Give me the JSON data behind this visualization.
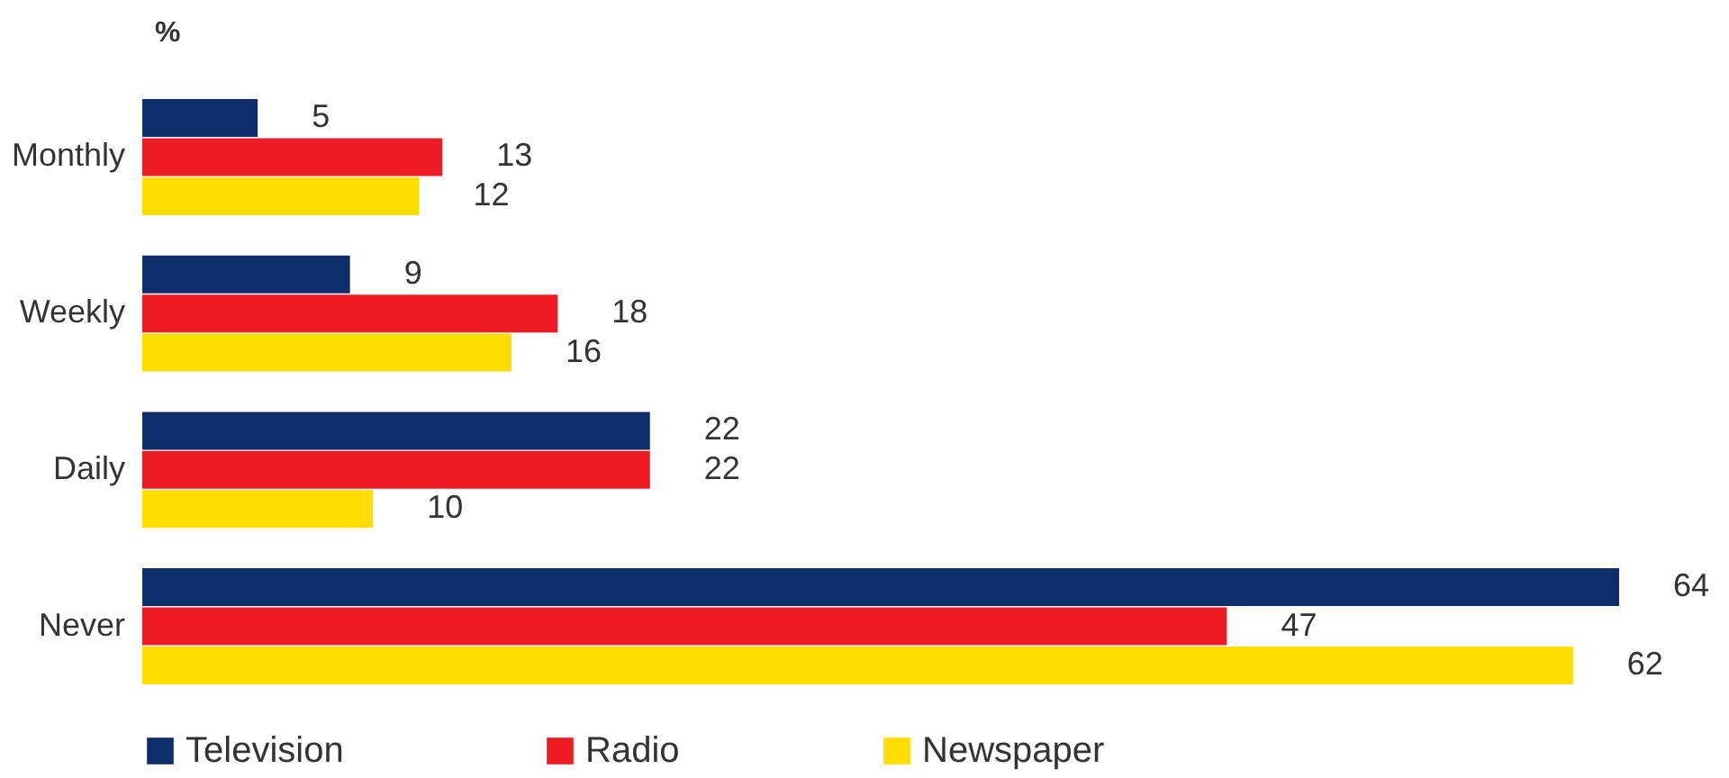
{
  "chart_data": {
    "type": "bar",
    "orientation": "horizontal",
    "title": "%",
    "categories": [
      "Monthly",
      "Weekly",
      "Daily",
      "Never"
    ],
    "series": [
      {
        "name": "Television",
        "color": "#0f2d6b",
        "values": [
          5,
          9,
          22,
          64
        ]
      },
      {
        "name": "Radio",
        "color": "#ed1c24",
        "values": [
          13,
          18,
          22,
          47
        ]
      },
      {
        "name": "Newspaper",
        "color": "#ffdd00",
        "values": [
          12,
          16,
          10,
          62
        ]
      }
    ],
    "data_labels": true,
    "legend": "bottom",
    "grid": false
  }
}
